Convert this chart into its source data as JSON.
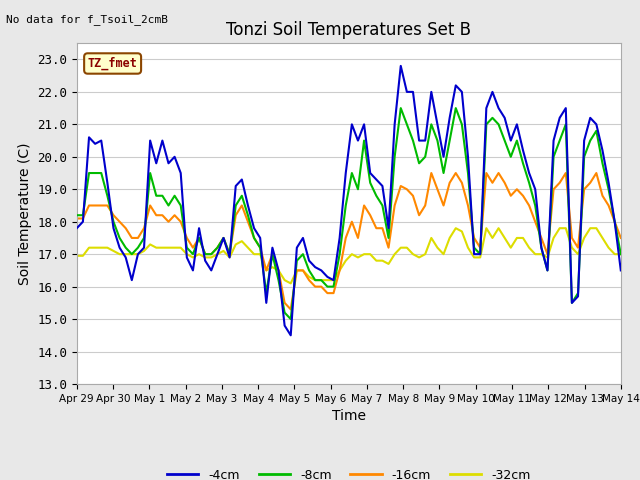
{
  "title": "Tonzi Soil Temperatures Set B",
  "xlabel": "Time",
  "ylabel": "Soil Temperature (C)",
  "no_data_text": "No data for f_Tsoil_2cmB",
  "annotation_text": "TZ_fmet",
  "ylim": [
    13.0,
    23.5
  ],
  "yticks": [
    13.0,
    14.0,
    15.0,
    16.0,
    17.0,
    18.0,
    19.0,
    20.0,
    21.0,
    22.0,
    23.0
  ],
  "fig_bg_color": "#e8e8e8",
  "plot_bg_color": "#ffffff",
  "line_colors": {
    "-4cm": "#0000cc",
    "-8cm": "#00bb00",
    "-16cm": "#ff8800",
    "-32cm": "#dddd00"
  },
  "xtick_labels": [
    "Apr 29",
    "Apr 30",
    "May 1",
    "May 2",
    "May 3",
    "May 4",
    "May 5",
    "May 6",
    "May 7",
    "May 8",
    "May 9",
    "May 10",
    "May 11",
    "May 12",
    "May 13",
    "May 14"
  ],
  "series_4cm": [
    17.8,
    18.0,
    20.6,
    20.4,
    20.5,
    19.2,
    17.8,
    17.2,
    16.9,
    16.2,
    17.0,
    17.2,
    20.5,
    19.8,
    20.5,
    19.8,
    20.0,
    19.5,
    16.9,
    16.5,
    17.8,
    16.8,
    16.5,
    17.0,
    17.5,
    16.9,
    19.1,
    19.3,
    18.5,
    17.8,
    17.5,
    15.5,
    17.2,
    16.5,
    14.8,
    14.5,
    17.2,
    17.5,
    16.8,
    16.6,
    16.5,
    16.3,
    16.2,
    17.5,
    19.5,
    21.0,
    20.5,
    21.0,
    19.5,
    19.3,
    19.1,
    17.8,
    21.0,
    22.8,
    22.0,
    22.0,
    20.5,
    20.5,
    22.0,
    21.0,
    20.0,
    21.2,
    22.2,
    22.0,
    20.0,
    17.0,
    17.0,
    21.5,
    22.0,
    21.5,
    21.2,
    20.5,
    21.0,
    20.2,
    19.5,
    19.0,
    17.2,
    16.5,
    20.5,
    21.2,
    21.5,
    15.5,
    15.7,
    20.5,
    21.2,
    21.0,
    20.2,
    19.2,
    18.0,
    16.5
  ],
  "series_8cm": [
    18.2,
    18.2,
    19.5,
    19.5,
    19.5,
    18.8,
    18.0,
    17.5,
    17.2,
    17.0,
    17.2,
    17.5,
    19.5,
    18.8,
    18.8,
    18.5,
    18.8,
    18.5,
    17.2,
    17.0,
    17.5,
    17.0,
    17.0,
    17.2,
    17.5,
    17.0,
    18.5,
    18.8,
    18.2,
    17.5,
    17.2,
    15.8,
    17.0,
    16.2,
    15.2,
    15.0,
    16.8,
    17.0,
    16.5,
    16.2,
    16.2,
    16.0,
    16.0,
    17.0,
    18.5,
    19.5,
    19.0,
    20.5,
    19.2,
    18.8,
    18.5,
    17.5,
    20.0,
    21.5,
    21.0,
    20.5,
    19.8,
    20.0,
    21.0,
    20.5,
    19.5,
    20.5,
    21.5,
    21.0,
    19.5,
    17.2,
    17.0,
    21.0,
    21.2,
    21.0,
    20.5,
    20.0,
    20.5,
    19.8,
    19.2,
    18.5,
    17.2,
    16.5,
    20.0,
    20.5,
    21.0,
    15.5,
    15.8,
    20.0,
    20.5,
    20.8,
    19.8,
    19.0,
    18.0,
    17.0
  ],
  "series_16cm": [
    18.1,
    18.1,
    18.5,
    18.5,
    18.5,
    18.5,
    18.2,
    18.0,
    17.8,
    17.5,
    17.5,
    17.8,
    18.5,
    18.2,
    18.2,
    18.0,
    18.2,
    18.0,
    17.5,
    17.2,
    17.5,
    17.0,
    17.0,
    17.2,
    17.5,
    17.0,
    18.2,
    18.5,
    18.0,
    17.5,
    17.2,
    16.5,
    17.0,
    16.5,
    15.5,
    15.3,
    16.5,
    16.5,
    16.2,
    16.0,
    16.0,
    15.8,
    15.8,
    16.5,
    17.5,
    18.0,
    17.5,
    18.5,
    18.2,
    17.8,
    17.8,
    17.2,
    18.5,
    19.1,
    19.0,
    18.8,
    18.2,
    18.5,
    19.5,
    19.0,
    18.5,
    19.2,
    19.5,
    19.2,
    18.5,
    17.5,
    17.2,
    19.5,
    19.2,
    19.5,
    19.2,
    18.8,
    19.0,
    18.8,
    18.5,
    18.0,
    17.5,
    17.0,
    19.0,
    19.2,
    19.5,
    17.5,
    17.2,
    19.0,
    19.2,
    19.5,
    18.8,
    18.5,
    18.0,
    17.5
  ],
  "series_32cm": [
    16.95,
    16.95,
    17.2,
    17.2,
    17.2,
    17.2,
    17.1,
    17.0,
    17.0,
    17.0,
    17.0,
    17.1,
    17.3,
    17.2,
    17.2,
    17.2,
    17.2,
    17.2,
    17.0,
    16.9,
    17.0,
    16.9,
    16.9,
    17.0,
    17.1,
    16.9,
    17.3,
    17.4,
    17.2,
    17.0,
    17.0,
    16.5,
    16.6,
    16.5,
    16.2,
    16.1,
    16.5,
    16.5,
    16.3,
    16.2,
    16.2,
    16.2,
    16.2,
    16.5,
    16.8,
    17.0,
    16.9,
    17.0,
    17.0,
    16.8,
    16.8,
    16.7,
    17.0,
    17.2,
    17.2,
    17.0,
    16.9,
    17.0,
    17.5,
    17.2,
    17.0,
    17.5,
    17.8,
    17.7,
    17.2,
    16.9,
    16.9,
    17.8,
    17.5,
    17.8,
    17.5,
    17.2,
    17.5,
    17.5,
    17.2,
    17.0,
    17.0,
    16.9,
    17.5,
    17.8,
    17.8,
    17.2,
    17.0,
    17.5,
    17.8,
    17.8,
    17.5,
    17.2,
    17.0,
    17.0
  ]
}
